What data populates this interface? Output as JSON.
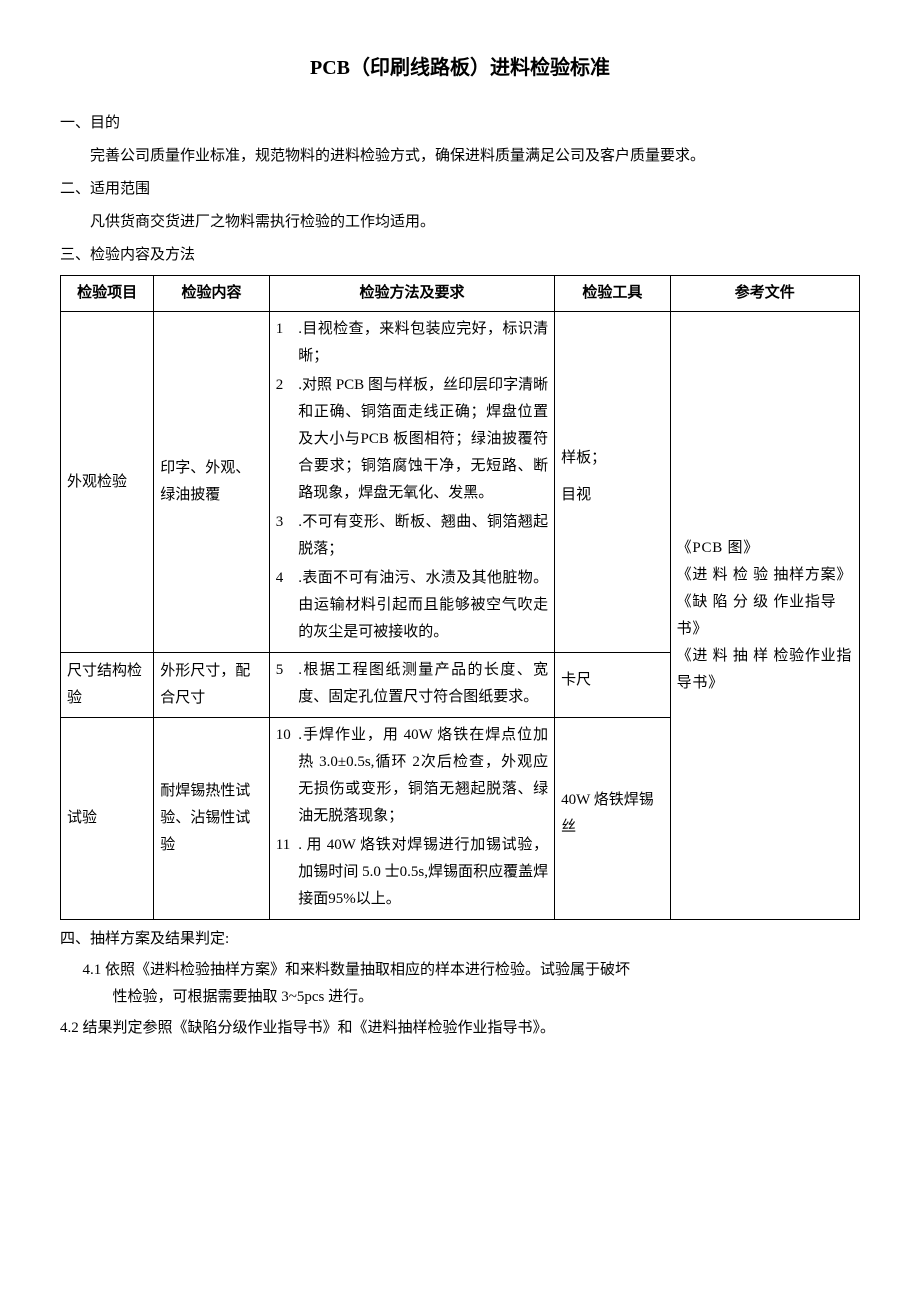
{
  "title": "PCB（印刷线路板）进料检验标准",
  "sections": {
    "s1": {
      "heading": "一、目的",
      "body": "完善公司质量作业标准，规范物料的进料检验方式，确保进料质量满足公司及客户质量要求。"
    },
    "s2": {
      "heading": "二、适用范围",
      "body": "凡供货商交货进厂之物料需执行检验的工作均适用。"
    },
    "s3": {
      "heading": "三、检验内容及方法"
    },
    "s4": {
      "heading": "四、抽样方案及结果判定:",
      "p1": "4.1 依照《进料检验抽样方案》和来料数量抽取相应的样本进行检验。试验属于破坏性检验，可根据需要抽取 3~5pcs 进行。",
      "p2": "4.2 结果判定参照《缺陷分级作业指导书》和《进料抽样检验作业指导书》。"
    }
  },
  "table": {
    "headers": {
      "c0": "检验项目",
      "c1": "检验内容",
      "c2": "检验方法及要求",
      "c3": "检验工具",
      "c4": "参考文件"
    },
    "rows": [
      {
        "c0": "外观检验",
        "c1": "印字、外观、绿油披覆",
        "req": [
          {
            "n": "1",
            "t": ".目视检查，来料包装应完好，标识清晰；"
          },
          {
            "n": "2",
            "t": ".对照 PCB 图与样板，丝印层印字清晰和正确、铜箔面走线正确；焊盘位置及大小与PCB 板图相符；绿油披覆符合要求；铜箔腐蚀干净，无短路、断路现象，焊盘无氧化、发黑。"
          },
          {
            "n": "3",
            "t": ".不可有变形、断板、翘曲、铜箔翘起脱落；"
          },
          {
            "n": "4",
            "t": ".表面不可有油污、水渍及其他脏物。由运输材料引起而且能够被空气吹走的灰尘是可被接收的。"
          }
        ],
        "tools": [
          "样板；",
          "目视"
        ]
      },
      {
        "c0": "尺寸结构检验",
        "c1": "外形尺寸，配合尺寸",
        "req": [
          {
            "n": "5",
            "t": ".根据工程图纸测量产品的长度、宽度、固定孔位置尺寸符合图纸要求。"
          }
        ],
        "tools": [
          "卡尺"
        ]
      },
      {
        "c0": "试验",
        "c1": "耐焊锡热性试验、沾锡性试验",
        "req": [
          {
            "n": "10",
            "t": ".手焊作业，用 40W 烙铁在焊点位加热 3.0±0.5s,循环 2次后检查，外观应无损伤或变形，铜箔无翘起脱落、绿油无脱落现象；"
          },
          {
            "n": "11",
            "t": ". 用 40W 烙铁对焊锡进行加锡试验， 加锡时间 5.0 士0.5s,焊锡面积应覆盖焊接面95%以上。"
          }
        ],
        "tools": [
          "40W 烙铁焊锡丝"
        ]
      }
    ],
    "refs": "《PCB 图》\n《进 料 检 验 抽样方案》\n《缺 陷 分 级 作业指导书》\n《进 料 抽 样 检验作业指导书》"
  }
}
